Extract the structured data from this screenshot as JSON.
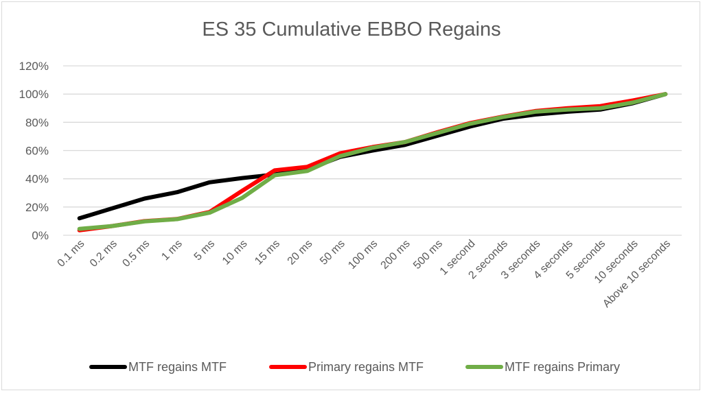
{
  "chart_data": {
    "type": "line",
    "title": "ES 35 Cumulative EBBO Regains",
    "xlabel": "",
    "ylabel": "",
    "ylim": [
      0,
      120
    ],
    "y_ticks": [
      "0%",
      "20%",
      "40%",
      "60%",
      "80%",
      "100%",
      "120%"
    ],
    "y_tick_values": [
      0,
      20,
      40,
      60,
      80,
      100,
      120
    ],
    "grid": true,
    "legend_position": "bottom",
    "categories": [
      "0.1 ms",
      "0.2 ms",
      "0.5 ms",
      "1 ms",
      "5 ms",
      "10 ms",
      "15 ms",
      "20 ms",
      "50 ms",
      "100 ms",
      "200 ms",
      "500 ms",
      "1 second",
      "2 seconds",
      "3 seconds",
      "4 seconds",
      "5 seconds",
      "10 seconds",
      "Above 10 seconds"
    ],
    "series": [
      {
        "name": "MTF regains MTF",
        "color": "#000000",
        "values": [
          12,
          19,
          26,
          30.5,
          37.5,
          40.5,
          43,
          46.5,
          55.5,
          60,
          64,
          70.5,
          77,
          82.5,
          85.5,
          87.5,
          89,
          93.5,
          100
        ]
      },
      {
        "name": "Primary regains MTF",
        "color": "#ff0000",
        "values": [
          3.5,
          6.5,
          10,
          11.5,
          16.5,
          31.5,
          46,
          48.5,
          58,
          62.5,
          66,
          73,
          79.5,
          84,
          88,
          90,
          91.5,
          95.5,
          100
        ]
      },
      {
        "name": "MTF regains Primary",
        "color": "#70ad47",
        "values": [
          4.5,
          6.5,
          9.8,
          11.4,
          16,
          26.5,
          42.5,
          45.5,
          56,
          62,
          66,
          72.5,
          79,
          83.7,
          87.5,
          89,
          90,
          94,
          100
        ]
      }
    ]
  }
}
